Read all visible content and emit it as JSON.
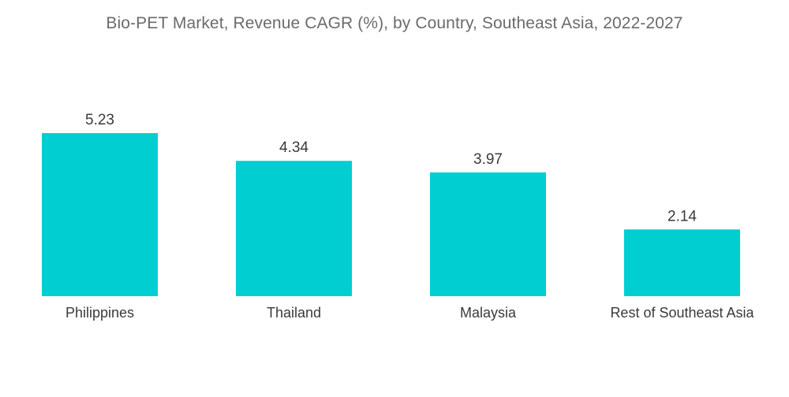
{
  "chart_data": {
    "type": "bar",
    "title": "Bio-PET Market, Revenue CAGR (%), by Country, Southeast Asia, 2022-2027",
    "categories": [
      "Philippines",
      "Thailand",
      "Malaysia",
      "Rest of Southeast Asia"
    ],
    "values": [
      5.23,
      4.34,
      3.97,
      2.14
    ],
    "value_labels": [
      "5.23",
      "4.34",
      "3.97",
      "2.14"
    ],
    "xlabel": "",
    "ylabel": "",
    "ylim": [
      0,
      5.23
    ],
    "grid": false,
    "legend": "none",
    "bar_color": "#00CED1"
  }
}
